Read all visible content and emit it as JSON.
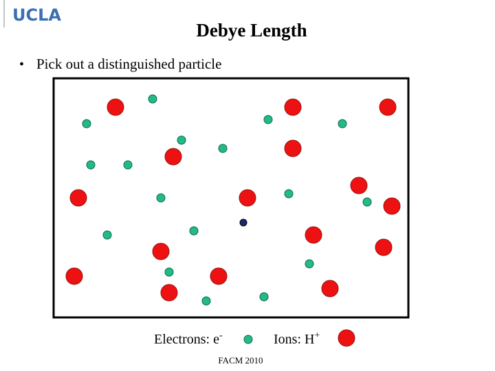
{
  "header": {
    "logo": "UCLA",
    "title": "Debye Length"
  },
  "bullets": [
    "Pick out a distinguished particle"
  ],
  "legend": {
    "electrons": {
      "label": "Electrons: e",
      "sup": "-"
    },
    "ions": {
      "label": "Ions: H",
      "sup": "+"
    }
  },
  "footer": "FACM 2010"
}
